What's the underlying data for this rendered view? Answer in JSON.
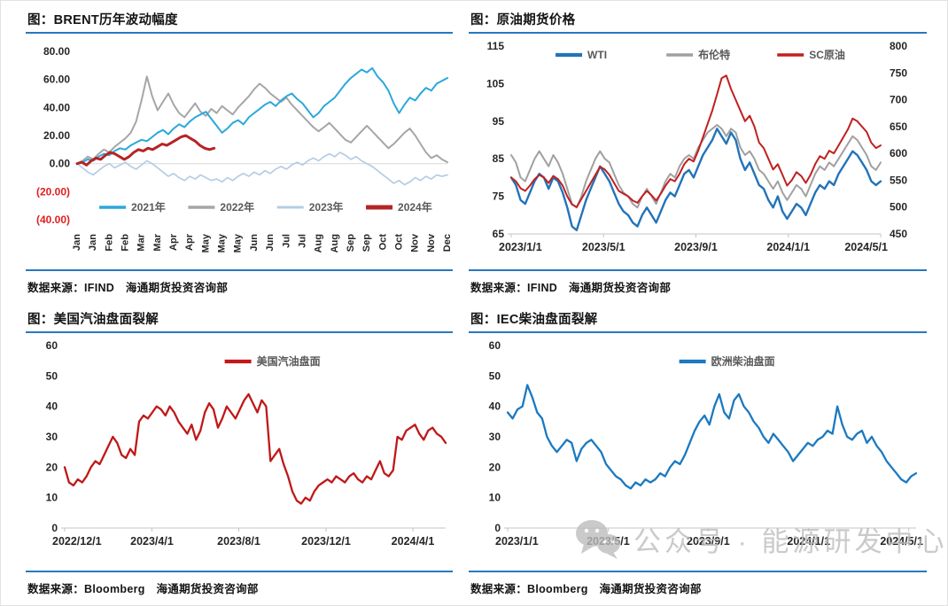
{
  "page": {
    "background": "#ffffff",
    "accent_line_color": "#2878C0"
  },
  "watermark": {
    "icon": "wechat-icon",
    "text": "公众号 · 能源研发中心",
    "color": "#bdbdbd"
  },
  "panels": [
    {
      "title": "图：BRENT历年波动幅度",
      "source": "数据来源：IFIND　海通期货投资咨询部"
    },
    {
      "title": "图：原油期货价格",
      "source": "数据来源：IFIND　海通期货投资咨询部"
    },
    {
      "title": "图：美国汽油盘面裂解",
      "source": "数据来源：Bloomberg　海通期货投资咨询部"
    },
    {
      "title": "图：IEC柴油盘面裂解",
      "source": "数据来源：Bloomberg　海通期货投资咨询部"
    }
  ],
  "chart_data": [
    {
      "type": "line",
      "title": "BRENT历年波动幅度",
      "x_mode": "months",
      "x_ticks": [
        "Jan",
        "Jan",
        "Feb",
        "Feb",
        "Mar",
        "Mar",
        "Apr",
        "Apr",
        "May",
        "May",
        "May",
        "Jun",
        "Jun",
        "Jul",
        "Jul",
        "Aug",
        "Aug",
        "Sep",
        "Sep",
        "Oct",
        "Oct",
        "Nov",
        "Nov",
        "Dec"
      ],
      "ylim": [
        -45,
        85
      ],
      "y_ticks": [
        {
          "v": 80,
          "label": "80.00"
        },
        {
          "v": 60,
          "label": "60.00"
        },
        {
          "v": 40,
          "label": "40.00"
        },
        {
          "v": 20,
          "label": "20.00"
        },
        {
          "v": 0,
          "label": "0.00"
        },
        {
          "v": -20,
          "label": "(20.00)",
          "neg": true
        },
        {
          "v": -40,
          "label": "(40.00)",
          "neg": true
        }
      ],
      "zero_line": true,
      "baseline": false,
      "legend": {
        "pos": "bottom",
        "offset": 22,
        "x0": 0.06,
        "x1": 0.78
      },
      "series": [
        {
          "name": "2021年",
          "color": "#2BA8DC",
          "width": 2,
          "z": 3,
          "values": [
            0,
            1,
            3,
            2,
            5,
            7,
            6,
            9,
            11,
            10,
            13,
            15,
            17,
            16,
            19,
            22,
            24,
            21,
            25,
            28,
            26,
            30,
            33,
            35,
            37,
            32,
            27,
            22,
            25,
            29,
            31,
            28,
            33,
            36,
            39,
            42,
            44,
            41,
            45,
            48,
            50,
            46,
            43,
            38,
            33,
            36,
            41,
            44,
            47,
            52,
            57,
            61,
            64,
            67,
            65,
            68,
            62,
            58,
            52,
            43,
            36,
            42,
            47,
            45,
            50,
            54,
            52,
            57,
            59,
            61
          ]
        },
        {
          "name": "2022年",
          "color": "#A6A6A6",
          "width": 2,
          "z": 2,
          "values": [
            0,
            2,
            5,
            3,
            7,
            10,
            8,
            12,
            15,
            18,
            22,
            30,
            45,
            62,
            48,
            38,
            44,
            50,
            42,
            36,
            33,
            38,
            43,
            37,
            34,
            39,
            36,
            41,
            38,
            35,
            40,
            44,
            48,
            53,
            57,
            54,
            50,
            47,
            44,
            47,
            42,
            38,
            34,
            30,
            26,
            23,
            26,
            29,
            25,
            21,
            17,
            15,
            19,
            23,
            27,
            23,
            19,
            15,
            11,
            14,
            18,
            22,
            25,
            20,
            14,
            8,
            4,
            6,
            3,
            1
          ]
        },
        {
          "name": "2023年",
          "color": "#B5CDE5",
          "width": 1.7,
          "z": 1,
          "values": [
            0,
            -3,
            -6,
            -8,
            -5,
            -2,
            0,
            -3,
            -1,
            1,
            -2,
            -4,
            -1,
            2,
            0,
            -3,
            -6,
            -9,
            -7,
            -10,
            -12,
            -9,
            -11,
            -8,
            -10,
            -12,
            -11,
            -13,
            -10,
            -12,
            -9,
            -7,
            -9,
            -6,
            -8,
            -5,
            -7,
            -4,
            -2,
            -4,
            -1,
            1,
            -1,
            2,
            4,
            2,
            5,
            7,
            5,
            8,
            6,
            3,
            5,
            2,
            0,
            -2,
            -5,
            -8,
            -11,
            -14,
            -12,
            -15,
            -13,
            -10,
            -12,
            -9,
            -11,
            -8,
            -9,
            -8
          ]
        },
        {
          "name": "2024年",
          "color": "#B62425",
          "width": 3,
          "z": 4,
          "x_end": 0.37,
          "values": [
            0,
            1,
            -1,
            2,
            4,
            3,
            6,
            8,
            7,
            5,
            3,
            5,
            8,
            10,
            9,
            11,
            10,
            12,
            14,
            13,
            15,
            17,
            19,
            20,
            18,
            16,
            13,
            11,
            10,
            11
          ]
        }
      ]
    },
    {
      "type": "line",
      "title": "原油期货价格",
      "x_ticks": [
        {
          "label": "2023/1/1",
          "f": 0
        },
        {
          "label": "2023/5/1",
          "f": 0.25
        },
        {
          "label": "2023/9/1",
          "f": 0.5
        },
        {
          "label": "2024/1/1",
          "f": 0.75
        },
        {
          "label": "2024/5/1",
          "f": 1
        }
      ],
      "ylim": [
        65,
        115
      ],
      "ylim_right": [
        450,
        800
      ],
      "y_ticks": [
        {
          "v": 115,
          "label": "115"
        },
        {
          "v": 105,
          "label": "105"
        },
        {
          "v": 95,
          "label": "95"
        },
        {
          "v": 85,
          "label": "85"
        },
        {
          "v": 75,
          "label": "75"
        },
        {
          "v": 65,
          "label": "65"
        }
      ],
      "y_ticks_right": [
        {
          "v": 800,
          "label": "800"
        },
        {
          "v": 750,
          "label": "750"
        },
        {
          "v": 700,
          "label": "700"
        },
        {
          "v": 650,
          "label": "650"
        },
        {
          "v": 600,
          "label": "600"
        },
        {
          "v": 550,
          "label": "550"
        },
        {
          "v": 500,
          "label": "500"
        },
        {
          "v": 450,
          "label": "450"
        }
      ],
      "baseline": true,
      "legend": {
        "pos": "top",
        "offset": 10,
        "x0": 0.12,
        "x1": 0.72
      },
      "series": [
        {
          "name": "WTI",
          "color": "#2273B9",
          "width": 2.4,
          "z": 2,
          "values": [
            80,
            78,
            74,
            73,
            76,
            79,
            81,
            80,
            77,
            80,
            79,
            76,
            72,
            67,
            66,
            70,
            74,
            77,
            80,
            83,
            81,
            79,
            76,
            73,
            71,
            70,
            68,
            67,
            70,
            72,
            70,
            68,
            71,
            74,
            76,
            75,
            78,
            81,
            82,
            80,
            83,
            86,
            88,
            90,
            93,
            91,
            89,
            92,
            90,
            85,
            82,
            84,
            81,
            78,
            77,
            74,
            72,
            75,
            71,
            69,
            71,
            73,
            72,
            70,
            73,
            76,
            78,
            77,
            79,
            78,
            81,
            83,
            85,
            87,
            86,
            84,
            82,
            79,
            78,
            79
          ]
        },
        {
          "name": "布伦特",
          "color": "#A0A0A0",
          "width": 2,
          "z": 1,
          "values": [
            86,
            84,
            80,
            79,
            82,
            85,
            87,
            85,
            83,
            86,
            84,
            81,
            77,
            73,
            72,
            75,
            79,
            82,
            85,
            87,
            85,
            84,
            81,
            78,
            76,
            75,
            73,
            72,
            75,
            77,
            75,
            73,
            76,
            79,
            81,
            80,
            83,
            85,
            86,
            85,
            88,
            90,
            92,
            93,
            94,
            93,
            91,
            93,
            92,
            88,
            86,
            87,
            85,
            82,
            81,
            79,
            77,
            79,
            76,
            74,
            76,
            78,
            77,
            75,
            78,
            81,
            83,
            82,
            84,
            83,
            85,
            87,
            89,
            91,
            90,
            88,
            86,
            83,
            82,
            84
          ]
        },
        {
          "name": "SC原油",
          "color": "#C02020",
          "width": 2,
          "z": 3,
          "axis": "right",
          "values": [
            555,
            548,
            535,
            530,
            540,
            552,
            560,
            555,
            545,
            558,
            552,
            540,
            520,
            505,
            500,
            515,
            530,
            545,
            560,
            575,
            570,
            560,
            545,
            530,
            525,
            520,
            512,
            508,
            520,
            530,
            522,
            512,
            525,
            540,
            552,
            548,
            562,
            580,
            590,
            585,
            605,
            630,
            655,
            680,
            710,
            740,
            745,
            720,
            700,
            680,
            660,
            670,
            650,
            620,
            610,
            590,
            570,
            580,
            560,
            540,
            550,
            565,
            558,
            545,
            560,
            580,
            595,
            590,
            605,
            600,
            615,
            630,
            645,
            665,
            660,
            650,
            640,
            620,
            610,
            615
          ]
        }
      ]
    },
    {
      "type": "line",
      "title": "美国汽油盘面裂解",
      "x_ticks": [
        {
          "label": "2022/12/1",
          "f": 0
        },
        {
          "label": "2023/4/1",
          "f": 0.229
        },
        {
          "label": "2023/8/1",
          "f": 0.457
        },
        {
          "label": "2023/12/1",
          "f": 0.686
        },
        {
          "label": "2024/4/1",
          "f": 0.914
        }
      ],
      "ylim": [
        0,
        60
      ],
      "y_ticks": [
        {
          "v": 60,
          "label": "60"
        },
        {
          "v": 50,
          "label": "50"
        },
        {
          "v": 40,
          "label": "40"
        },
        {
          "v": 30,
          "label": "30"
        },
        {
          "v": 20,
          "label": "20"
        },
        {
          "v": 10,
          "label": "10"
        },
        {
          "v": 0,
          "label": "0"
        }
      ],
      "baseline": true,
      "legend": {
        "pos": "top",
        "offset": 18,
        "x0": 0.42,
        "x1": 0.42
      },
      "series": [
        {
          "name": "美国汽油盘面",
          "color": "#C01818",
          "width": 2.3,
          "z": 1,
          "values": [
            20,
            15,
            14,
            16,
            15,
            17,
            20,
            22,
            21,
            24,
            27,
            30,
            28,
            24,
            23,
            26,
            24,
            35,
            37,
            36,
            38,
            40,
            39,
            37,
            40,
            38,
            35,
            33,
            31,
            34,
            29,
            32,
            38,
            41,
            39,
            33,
            36,
            40,
            38,
            36,
            39,
            42,
            44,
            41,
            38,
            42,
            40,
            22,
            24,
            26,
            21,
            17,
            12,
            9,
            8,
            10,
            9,
            12,
            14,
            15,
            16,
            15,
            17,
            16,
            15,
            17,
            18,
            16,
            15,
            17,
            16,
            19,
            22,
            18,
            17,
            19,
            30,
            29,
            32,
            33,
            34,
            31,
            29,
            32,
            33,
            31,
            30,
            28
          ]
        }
      ]
    },
    {
      "type": "line",
      "title": "IEC柴油盘面裂解",
      "x_ticks": [
        {
          "label": "2023/1/1",
          "f": 0
        },
        {
          "label": "2023/5/1",
          "f": 0.246
        },
        {
          "label": "2023/9/1",
          "f": 0.491
        },
        {
          "label": "2024/1/1",
          "f": 0.737
        },
        {
          "label": "2024/5/1",
          "f": 0.982
        }
      ],
      "ylim": [
        0,
        60
      ],
      "y_ticks": [
        {
          "v": 60,
          "label": "60"
        },
        {
          "v": 50,
          "label": "50"
        },
        {
          "v": 40,
          "label": "40"
        },
        {
          "v": 30,
          "label": "30"
        },
        {
          "v": 20,
          "label": "20"
        },
        {
          "v": 10,
          "label": "10"
        },
        {
          "v": 0,
          "label": "0"
        }
      ],
      "baseline": true,
      "legend": {
        "pos": "top",
        "offset": 18,
        "x0": 0.42,
        "x1": 0.42
      },
      "series": [
        {
          "name": "欧洲柴油盘面",
          "color": "#1B79C0",
          "width": 2.3,
          "z": 1,
          "values": [
            38,
            36,
            39,
            40,
            47,
            43,
            38,
            36,
            30,
            27,
            25,
            27,
            29,
            28,
            22,
            26,
            28,
            29,
            27,
            25,
            21,
            19,
            17,
            16,
            14,
            13,
            15,
            14,
            16,
            15,
            16,
            18,
            17,
            20,
            22,
            21,
            24,
            28,
            32,
            35,
            37,
            34,
            40,
            44,
            38,
            36,
            42,
            44,
            40,
            38,
            35,
            33,
            30,
            28,
            31,
            29,
            27,
            25,
            22,
            24,
            26,
            28,
            27,
            29,
            30,
            32,
            31,
            40,
            34,
            30,
            29,
            31,
            32,
            28,
            30,
            27,
            25,
            22,
            20,
            18,
            16,
            15,
            17,
            18
          ]
        }
      ]
    }
  ]
}
